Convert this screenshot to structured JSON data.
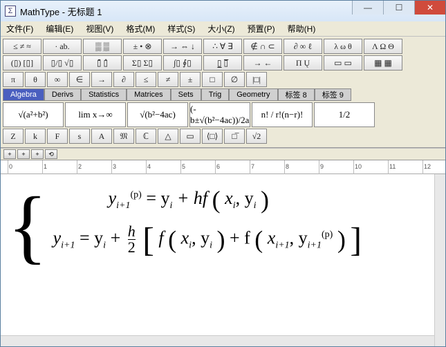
{
  "window": {
    "title": "MathType - 无标题 1",
    "logo_text": "Σ",
    "min": "—",
    "max": "☐",
    "close": "✕"
  },
  "menu": {
    "file": "文件(F)",
    "edit": "编辑(E)",
    "view": "视图(V)",
    "format": "格式(M)",
    "style": "样式(S)",
    "size": "大小(Z)",
    "prefs": "预置(P)",
    "help": "帮助(H)"
  },
  "toolrows": {
    "r1": [
      "≤ ≠ ≈",
      "· ab.",
      "▒ ▒",
      "± • ⊗",
      "→ ⇔ ↓",
      "∴ ∀ ∃",
      "∉ ∩ ⊂",
      "∂ ∞ ℓ",
      "λ ω θ",
      "Λ Ω Θ"
    ],
    "r2": [
      "(▯) [▯]",
      "▯/▯ √▯",
      "▯̄ ▯̂",
      "Σ▯ Σ▯",
      "∫▯ ∮▯",
      "▯̲ ▯̅",
      "→ ←",
      "Π Ų",
      "▭ ▭",
      "▦ ▦"
    ],
    "r3": [
      "π",
      "θ",
      "∞",
      "∈",
      "→",
      "∂",
      "≤",
      "≠",
      "±",
      "□",
      "∅",
      "|□|"
    ]
  },
  "tabs": {
    "items": [
      "Algebra",
      "Derivs",
      "Statistics",
      "Matrices",
      "Sets",
      "Trig",
      "Geometry",
      "标签 8",
      "标签 9"
    ],
    "active": 0
  },
  "bigcells": [
    "√(a²+b²)",
    "lim x→∞",
    "√(b²−4ac)",
    "(-b±√(b²−4ac))/2a",
    "n! / r!(n−r)!",
    "1/2"
  ],
  "row4": [
    "Z",
    "k",
    "F",
    "s",
    "A",
    "𝔐",
    "ℂ",
    "△",
    "▭",
    "⟨□⟩",
    "□̅",
    "√2"
  ],
  "sizebar": [
    "+",
    "+",
    "+",
    "⟲"
  ],
  "ruler": {
    "marks": [
      "0",
      "1",
      "2",
      "3",
      "4",
      "5",
      "6",
      "7",
      "8",
      "9",
      "10",
      "11",
      "12"
    ]
  },
  "equation": {
    "line1_pre": "y",
    "line1_sub1": "i+1",
    "line1_sup": "(p)",
    "line1_eq": " = y",
    "line1_sub2": "i",
    "line1_plus": " + hf ",
    "line1_x": " x",
    "line1_subx": "i",
    "line1_comma": ",  y",
    "line1_suby": "i",
    "line2_y": "y",
    "line2_sub1": "i+1",
    "line2_eq": " = y",
    "line2_sub2": "i",
    "line2_plus": " + ",
    "frac_n": "h",
    "frac_d": "2",
    "line2_f": " f ",
    "line2_x": " x",
    "line2_subx": "i",
    "line2_comma": ",  y",
    "line2_suby": "i",
    "line2_plus2": " + f ",
    "line2_x2": " x",
    "line2_subx2": "i+1",
    "line2_comma2": ",  y",
    "line2_suby2": "i+1",
    "line2_sup2": "(p)"
  }
}
